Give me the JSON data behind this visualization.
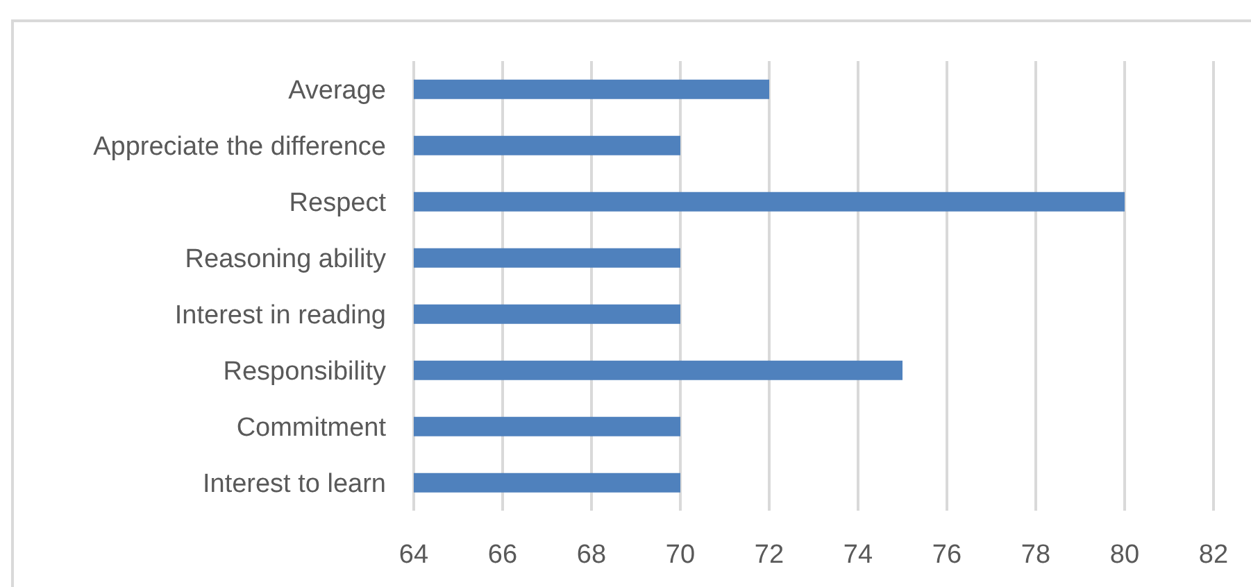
{
  "chart_data": {
    "type": "bar",
    "orientation": "horizontal",
    "categories": [
      "Average",
      "Appreciate the difference",
      "Respect",
      "Reasoning ability",
      "Interest in reading",
      "Responsibility",
      "Commitment",
      "Interest to learn"
    ],
    "values": [
      72,
      70,
      80,
      70,
      70,
      75,
      70,
      70
    ],
    "color": "#4f81bd",
    "xlim": [
      64,
      82
    ],
    "xticks": [
      64,
      66,
      68,
      70,
      72,
      74,
      76,
      78,
      80,
      82
    ],
    "grid": "x"
  }
}
